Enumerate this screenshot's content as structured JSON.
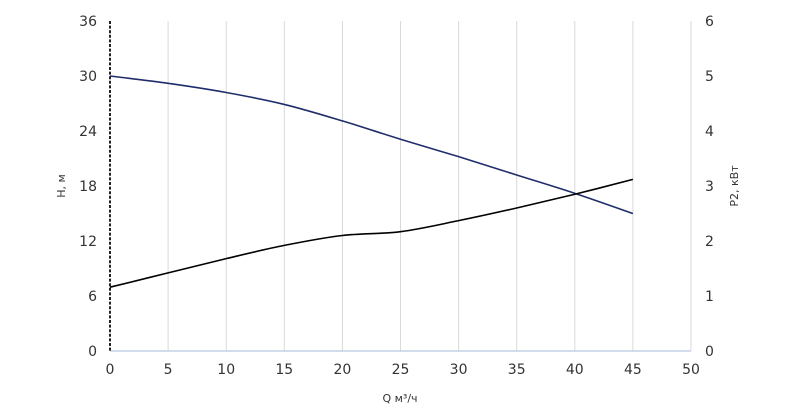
{
  "chart_data": {
    "type": "line",
    "xlabel": "Q м³/ч",
    "ylabel_left": "H, м",
    "ylabel_right": "P2, кВт",
    "xlim": [
      0,
      50
    ],
    "ylim_left": [
      0,
      36
    ],
    "ylim_right": [
      0,
      6
    ],
    "x_ticks": [
      "0",
      "5",
      "10",
      "15",
      "20",
      "25",
      "30",
      "35",
      "40",
      "45",
      "50"
    ],
    "y_ticks_left": [
      "0",
      "6",
      "12",
      "18",
      "24",
      "30",
      "36"
    ],
    "y_ticks_right": [
      "0",
      "1",
      "2",
      "3",
      "4",
      "5",
      "6"
    ],
    "grid": "vertical",
    "series": [
      {
        "axis": "left",
        "color": "#1f2d6b",
        "x": [
          0,
          5,
          10,
          15,
          20,
          25,
          30,
          35,
          40,
          45
        ],
        "y": [
          30,
          29.2,
          28.2,
          26.9,
          25.1,
          23.1,
          21.2,
          19.2,
          17.2,
          15
        ]
      },
      {
        "axis": "right",
        "color": "#000000",
        "x": [
          0,
          5,
          10,
          15,
          20,
          25,
          30,
          35,
          40,
          45
        ],
        "y": [
          1.16,
          1.42,
          1.68,
          1.92,
          2.1,
          2.17,
          2.37,
          2.6,
          2.85,
          3.12
        ]
      }
    ]
  }
}
